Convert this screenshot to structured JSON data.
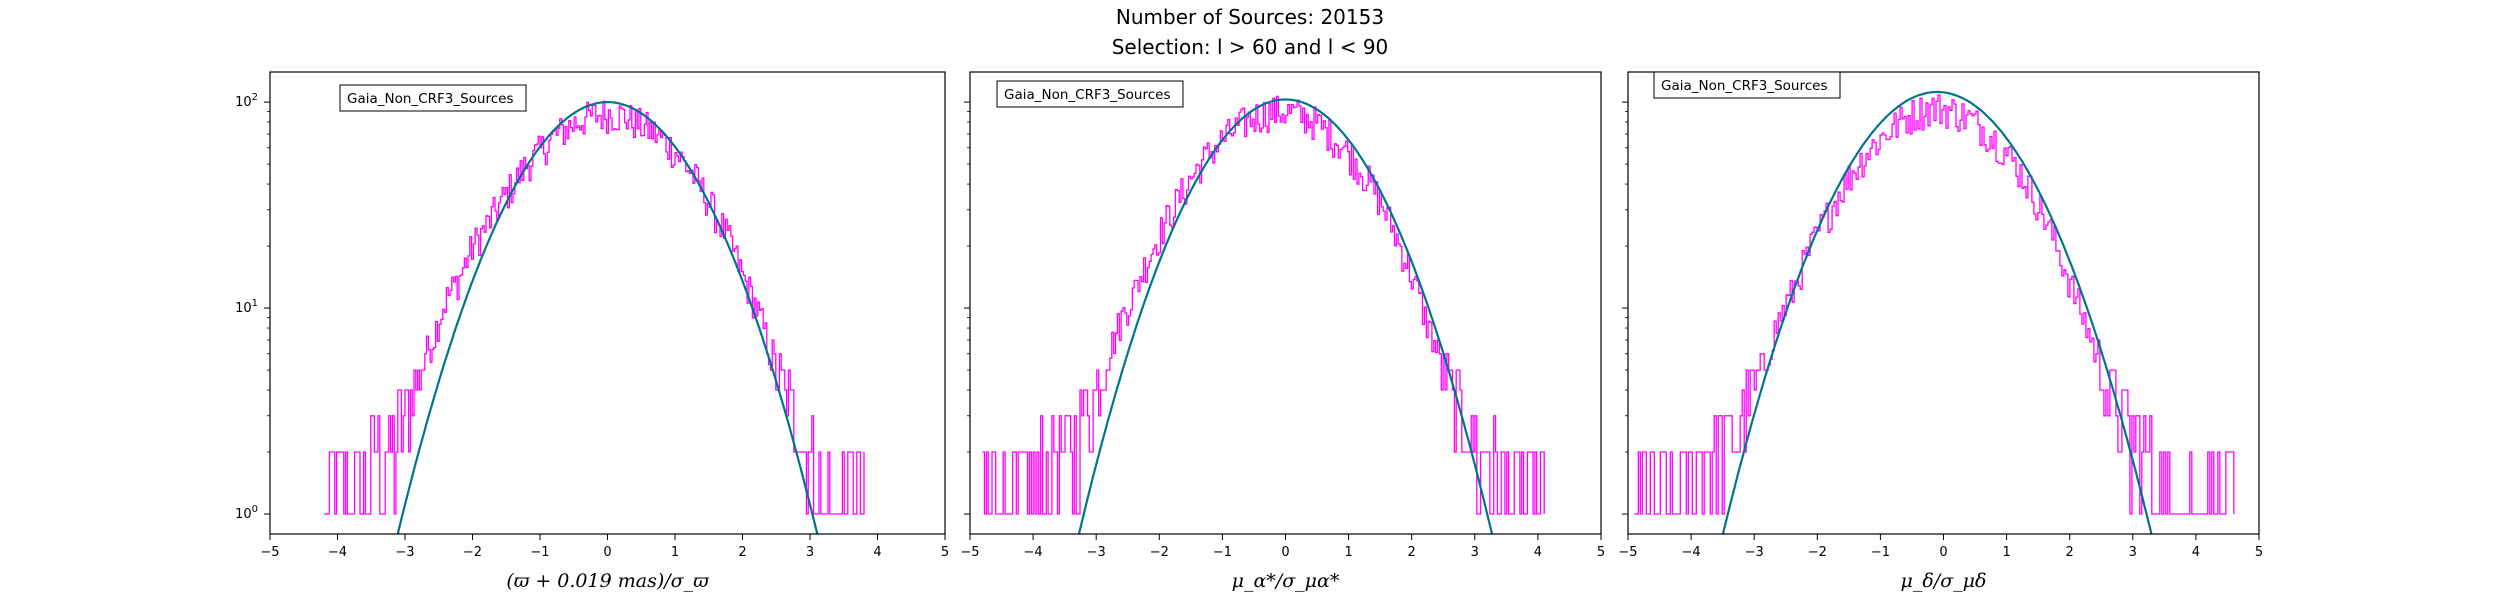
{
  "figure": {
    "title_line1": "Number of Sources: 20153",
    "title_line2": "Selection: l > 60 and l < 90"
  },
  "colors": {
    "histogram": "#ff00ff",
    "fit": "#00758a"
  },
  "chart_data": [
    {
      "type": "line",
      "legend": "Gaia_Non_CRF3_Sources",
      "legend_placement": "top-left",
      "xlabel": "(ϖ + 0.019 mas)/σ_ϖ",
      "xlim": [
        -5,
        5
      ],
      "ylim": [
        0.8,
        140
      ],
      "yscale": "log",
      "xticks": [
        "−5",
        "−4",
        "−3",
        "−2",
        "−1",
        "0",
        "1",
        "2",
        "3",
        "4",
        "5"
      ],
      "yticks": [
        {
          "base": "10",
          "exp": "0"
        },
        {
          "base": "10",
          "exp": "1"
        },
        {
          "base": "10",
          "exp": "2"
        }
      ],
      "fit_gaussian": {
        "amplitude": 100,
        "mean": 0.0,
        "sigma": 1.0
      },
      "series": [
        {
          "role": "histogram",
          "x": [
            -4.2,
            -4.0,
            -3.7,
            -3.4,
            -3.2,
            -3.0,
            -2.8,
            -2.6,
            -2.4,
            -2.2,
            -2.0,
            -1.8,
            -1.6,
            -1.4,
            -1.2,
            -1.0,
            -0.8,
            -0.6,
            -0.4,
            -0.2,
            0.0,
            0.2,
            0.4,
            0.6,
            0.8,
            1.0,
            1.2,
            1.4,
            1.6,
            1.8,
            2.0,
            2.2,
            2.4,
            2.6,
            2.8,
            3.0,
            3.2,
            3.4,
            3.6,
            3.8
          ],
          "y": [
            1,
            1,
            1,
            2,
            2,
            3,
            5,
            7,
            11,
            14,
            20,
            25,
            32,
            40,
            50,
            58,
            68,
            75,
            82,
            86,
            88,
            86,
            80,
            74,
            66,
            57,
            47,
            37,
            28,
            21,
            14,
            10,
            6,
            4,
            3,
            2,
            1,
            1,
            1,
            1
          ]
        }
      ]
    },
    {
      "type": "line",
      "legend": "Gaia_Non_CRF3_Sources",
      "legend_placement": "top-left",
      "xlabel": "μ_α*/σ_μα*",
      "xlim": [
        -5,
        5
      ],
      "ylim": [
        0.8,
        140
      ],
      "yscale": "log",
      "xticks": [
        "−5",
        "−4",
        "−3",
        "−2",
        "−1",
        "0",
        "1",
        "2",
        "3",
        "4",
        "5"
      ],
      "fit_gaussian": {
        "amplitude": 103,
        "mean": 0.0,
        "sigma": 1.05
      },
      "series": [
        {
          "role": "histogram",
          "x": [
            -4.8,
            -4.4,
            -4.0,
            -3.7,
            -3.4,
            -3.2,
            -3.0,
            -2.8,
            -2.6,
            -2.4,
            -2.2,
            -2.0,
            -1.8,
            -1.6,
            -1.4,
            -1.2,
            -1.0,
            -0.8,
            -0.6,
            -0.4,
            -0.2,
            0.0,
            0.2,
            0.4,
            0.6,
            0.8,
            1.0,
            1.2,
            1.4,
            1.6,
            1.8,
            2.0,
            2.2,
            2.4,
            2.6,
            2.8,
            3.0,
            3.2,
            3.5,
            3.8,
            4.1
          ],
          "y": [
            1,
            1,
            1,
            2,
            2,
            3,
            4,
            6,
            9,
            12,
            17,
            23,
            30,
            38,
            48,
            57,
            66,
            74,
            82,
            87,
            90,
            90,
            87,
            82,
            74,
            65,
            56,
            46,
            37,
            28,
            20,
            14,
            9,
            6,
            4,
            3,
            2,
            2,
            1,
            1,
            1
          ]
        }
      ]
    },
    {
      "type": "line",
      "legend": "Gaia_Non_CRF3_Sources",
      "legend_placement": "top-left",
      "xlabel": "μ_δ/σ_μδ",
      "xlim": [
        -5,
        5
      ],
      "ylim": [
        0.8,
        140
      ],
      "yscale": "log",
      "xticks": [
        "−5",
        "−4",
        "−3",
        "−2",
        "−1",
        "0",
        "1",
        "2",
        "3",
        "4",
        "5"
      ],
      "fit_gaussian": {
        "amplitude": 112,
        "mean": -0.1,
        "sigma": 1.08
      },
      "series": [
        {
          "role": "histogram",
          "x": [
            -4.9,
            -4.5,
            -4.1,
            -3.8,
            -3.5,
            -3.2,
            -3.0,
            -2.8,
            -2.6,
            -2.4,
            -2.2,
            -2.0,
            -1.8,
            -1.6,
            -1.4,
            -1.2,
            -1.0,
            -0.8,
            -0.6,
            -0.4,
            -0.2,
            0.0,
            0.2,
            0.4,
            0.6,
            0.8,
            1.0,
            1.2,
            1.4,
            1.6,
            1.8,
            2.0,
            2.2,
            2.4,
            2.6,
            2.8,
            3.0,
            3.2,
            3.5,
            3.8,
            4.2,
            4.6
          ],
          "y": [
            1,
            1,
            1,
            2,
            2,
            3,
            4,
            6,
            9,
            12,
            17,
            23,
            30,
            39,
            48,
            58,
            67,
            76,
            84,
            90,
            94,
            93,
            89,
            83,
            75,
            66,
            56,
            46,
            36,
            27,
            19,
            13,
            9,
            6,
            4,
            3,
            2,
            2,
            1,
            1,
            1,
            1
          ]
        }
      ]
    }
  ]
}
